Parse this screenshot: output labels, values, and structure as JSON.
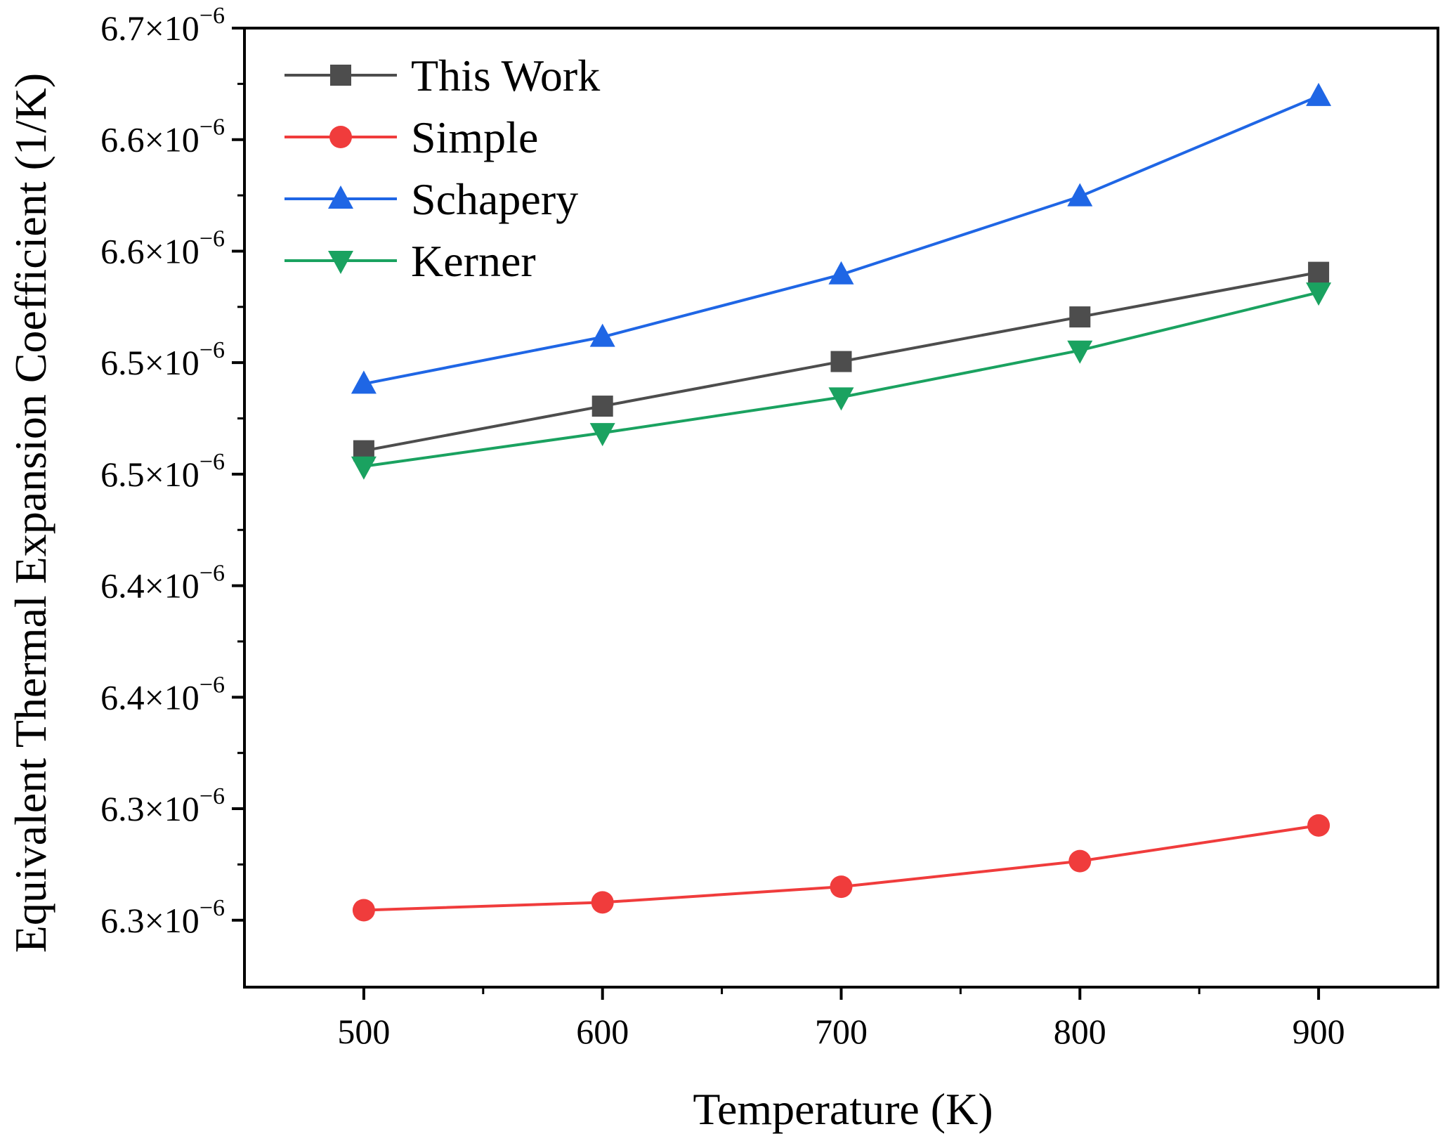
{
  "chart_data": {
    "type": "line",
    "title": "",
    "xlabel": "Temperature (K)",
    "ylabel": "Equivalent Thermal Expansion Coefficient (1/K)",
    "xlim": [
      450,
      950
    ],
    "ylim": [
      6.26,
      6.69
    ],
    "x_ticks": [
      500,
      600,
      700,
      800,
      900
    ],
    "x_tick_labels": [
      "500",
      "600",
      "700",
      "800",
      "900"
    ],
    "y_ticks": [
      {
        "value": 6.29,
        "mantissa": "6.3",
        "exponent": "−6"
      },
      {
        "value": 6.34,
        "mantissa": "6.3",
        "exponent": "−6"
      },
      {
        "value": 6.39,
        "mantissa": "6.4",
        "exponent": "−6"
      },
      {
        "value": 6.44,
        "mantissa": "6.4",
        "exponent": "−6"
      },
      {
        "value": 6.49,
        "mantissa": "6.5",
        "exponent": "−6"
      },
      {
        "value": 6.54,
        "mantissa": "6.5",
        "exponent": "−6"
      },
      {
        "value": 6.59,
        "mantissa": "6.6",
        "exponent": "−6"
      },
      {
        "value": 6.64,
        "mantissa": "6.6",
        "exponent": "−6"
      },
      {
        "value": 6.69,
        "mantissa": "6.7",
        "exponent": "−6"
      }
    ],
    "y_tick_times": "×10",
    "x": [
      500,
      600,
      700,
      800,
      900
    ],
    "series": [
      {
        "name": "This Work",
        "color": "#4d4d4d",
        "marker": "square",
        "values": [
          6.5005,
          6.5205,
          6.5405,
          6.5605,
          6.5805
        ]
      },
      {
        "name": "Simple",
        "color": "#f03c3c",
        "marker": "circle",
        "values": [
          6.2945,
          6.298,
          6.305,
          6.3165,
          6.3325
        ]
      },
      {
        "name": "Schapery",
        "color": "#1f66e5",
        "marker": "triangle-up",
        "values": [
          6.5305,
          6.5515,
          6.5795,
          6.6145,
          6.6595
        ]
      },
      {
        "name": "Kerner",
        "color": "#1aa260",
        "marker": "triangle-down",
        "values": [
          6.4935,
          6.5085,
          6.5245,
          6.5455,
          6.5715
        ]
      }
    ],
    "legend_position": "top-left",
    "grid": false
  }
}
